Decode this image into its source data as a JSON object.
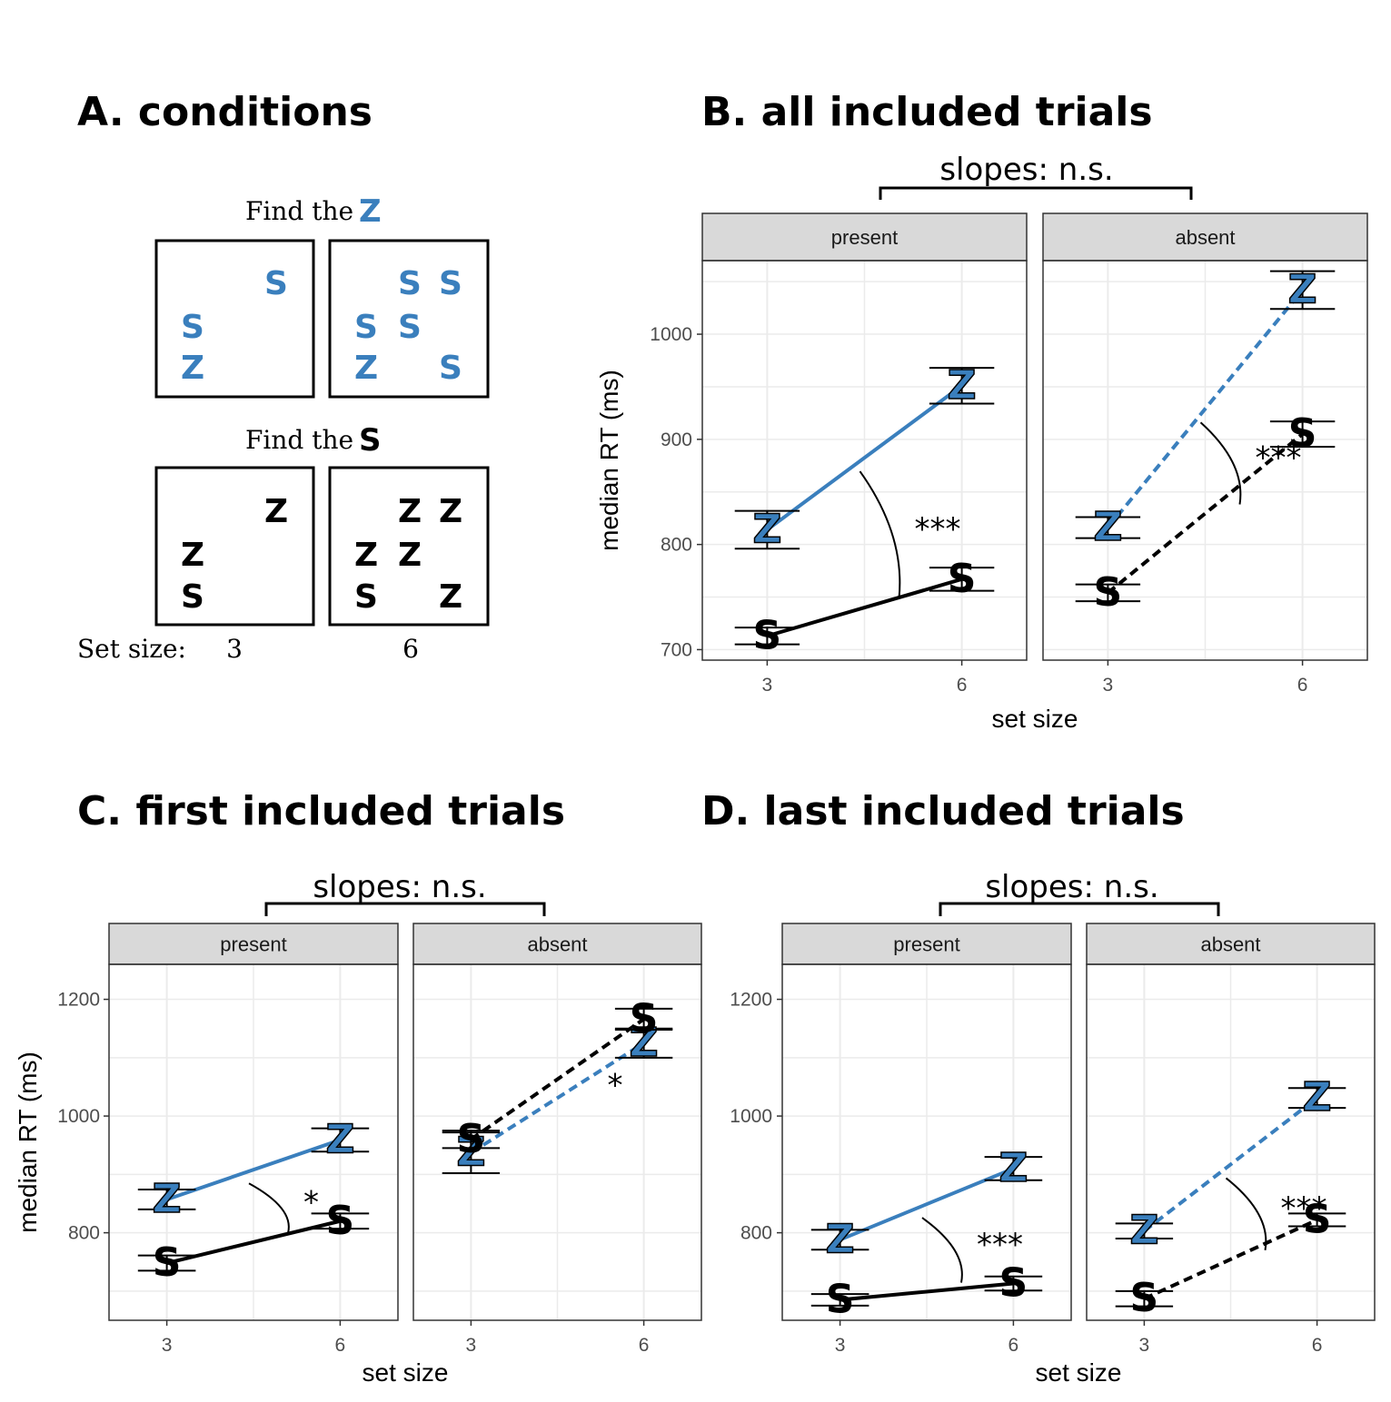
{
  "colors": {
    "blue": "#3a7fbd",
    "black": "#000000",
    "strip": "#d9d9d9",
    "grid": "#ebebeb"
  },
  "panel_a": {
    "title": "A. conditions",
    "find_label": "Find the",
    "target_blue": "Z",
    "target_black": "S",
    "set_size_label": "Set size:",
    "set_sizes": [
      "3",
      "6"
    ]
  },
  "chart_data": [
    {
      "id": "B",
      "type": "line",
      "title": "B. all included trials",
      "bracket_label": "slopes: n.s.",
      "xlabel": "set size",
      "ylabel": "median RT (ms)",
      "ylim": [
        690,
        1070
      ],
      "yticks": [
        700,
        800,
        900,
        1000
      ],
      "x": [
        3,
        6
      ],
      "facets": [
        {
          "label": "present",
          "sig": "***",
          "series": [
            {
              "color": "blue",
              "marker": "Z",
              "linetype": "solid",
              "values": [
                814,
                951
              ],
              "err": [
                18,
                17
              ]
            },
            {
              "color": "black",
              "marker": "S",
              "linetype": "solid",
              "values": [
                713,
                767
              ],
              "err": [
                8,
                11
              ]
            }
          ]
        },
        {
          "label": "absent",
          "sig": "***",
          "series": [
            {
              "color": "blue",
              "marker": "Z",
              "linetype": "dashed",
              "values": [
                816,
                1042
              ],
              "err": [
                10,
                18
              ]
            },
            {
              "color": "black",
              "marker": "S",
              "linetype": "dashed",
              "values": [
                754,
                905
              ],
              "err": [
                8,
                12
              ]
            }
          ]
        }
      ]
    },
    {
      "id": "C",
      "type": "line",
      "title": "C. first included trials",
      "bracket_label": "slopes: n.s.",
      "xlabel": "set size",
      "ylabel": "median RT (ms)",
      "ylim": [
        650,
        1260
      ],
      "yticks": [
        800,
        1000,
        1200
      ],
      "x": [
        3,
        6
      ],
      "facets": [
        {
          "label": "present",
          "sig": "*",
          "series": [
            {
              "color": "blue",
              "marker": "Z",
              "linetype": "solid",
              "values": [
                857,
                959
              ],
              "err": [
                17,
                20
              ]
            },
            {
              "color": "black",
              "marker": "S",
              "linetype": "solid",
              "values": [
                748,
                820
              ],
              "err": [
                13,
                13
              ]
            }
          ]
        },
        {
          "label": "absent",
          "sig": "*",
          "series": [
            {
              "color": "blue",
              "marker": "Z",
              "linetype": "dashed",
              "values": [
                937,
                1125
              ],
              "err": [
                35,
                25
              ]
            },
            {
              "color": "black",
              "marker": "S",
              "linetype": "dashed",
              "values": [
                960,
                1166
              ],
              "err": [
                15,
                18
              ]
            }
          ]
        }
      ]
    },
    {
      "id": "D",
      "type": "line",
      "title": "D. last included trials",
      "bracket_label": "slopes: n.s.",
      "xlabel": "set size",
      "ylabel": "median RT (ms)",
      "ylim": [
        650,
        1260
      ],
      "yticks": [
        800,
        1000,
        1200
      ],
      "x": [
        3,
        6
      ],
      "facets": [
        {
          "label": "present",
          "sig": "***",
          "series": [
            {
              "color": "blue",
              "marker": "Z",
              "linetype": "solid",
              "values": [
                788,
                910
              ],
              "err": [
                17,
                20
              ]
            },
            {
              "color": "black",
              "marker": "S",
              "linetype": "solid",
              "values": [
                685,
                713
              ],
              "err": [
                10,
                12
              ]
            }
          ]
        },
        {
          "label": "absent",
          "sig": "***",
          "series": [
            {
              "color": "blue",
              "marker": "Z",
              "linetype": "dashed",
              "values": [
                803,
                1031
              ],
              "err": [
                13,
                17
              ]
            },
            {
              "color": "black",
              "marker": "S",
              "linetype": "dashed",
              "values": [
                687,
                822
              ],
              "err": [
                13,
                11
              ]
            }
          ]
        }
      ]
    }
  ]
}
